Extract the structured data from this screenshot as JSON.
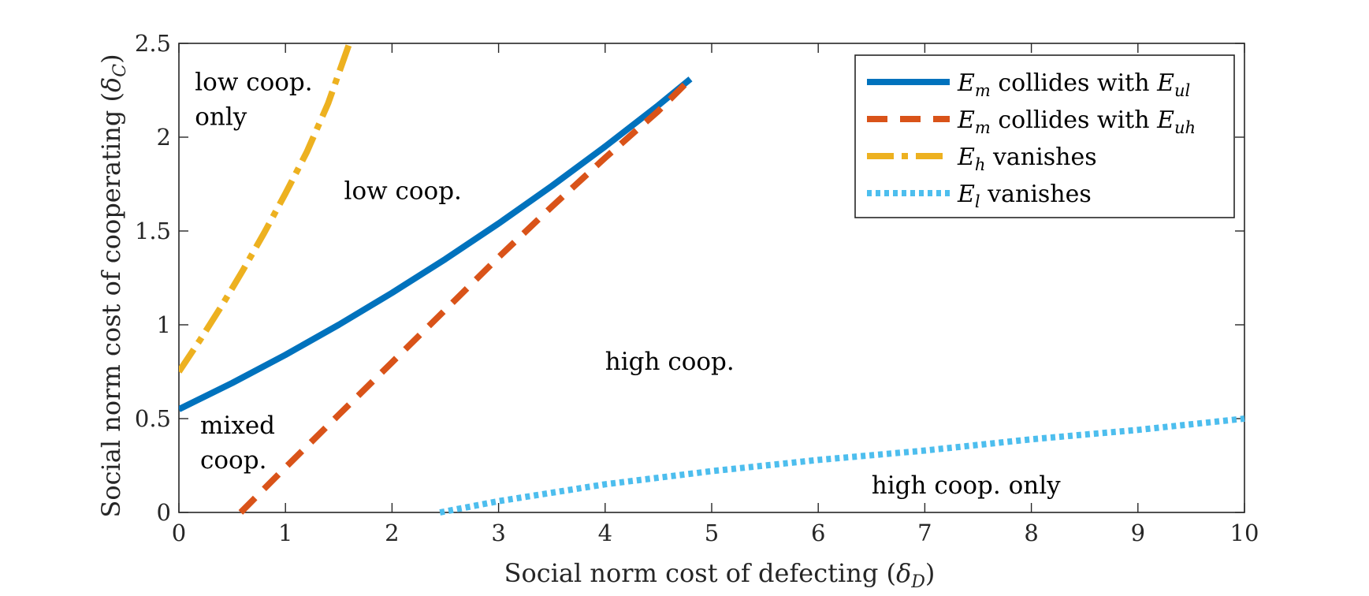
{
  "colors": {
    "axis": "#262626",
    "series_1": "#0072BD",
    "series_2": "#D95319",
    "series_3": "#EDB120",
    "series_4": "#4DBEEE"
  },
  "chart_data": {
    "type": "line",
    "xlabel_text": "Social norm cost of defecting (",
    "xlabel_symbol": "δ",
    "xlabel_sub": "D",
    "xlabel_close": ")",
    "ylabel_text": "Social norm cost of cooperating (",
    "ylabel_symbol": "δ",
    "ylabel_sub": "C",
    "ylabel_close": ")",
    "xlim": [
      0,
      10
    ],
    "ylim": [
      0,
      2.5
    ],
    "xticks": [
      0,
      1,
      2,
      3,
      4,
      5,
      6,
      7,
      8,
      9,
      10
    ],
    "yticks": [
      0,
      0.5,
      1,
      1.5,
      2,
      2.5
    ],
    "xtick_labels": [
      "0",
      "1",
      "2",
      "3",
      "4",
      "5",
      "6",
      "7",
      "8",
      "9",
      "10"
    ],
    "ytick_labels": [
      "0",
      "0.5",
      "1",
      "1.5",
      "2",
      "2.5"
    ],
    "grid": false,
    "legend_position": "top-right",
    "series": [
      {
        "legend_math": "E",
        "legend_sub": "m",
        "legend_text": " collides with ",
        "legend_math2": "E",
        "legend_sub2": "ul",
        "color": "#0072BD",
        "style": "solid",
        "x": [
          0,
          0.5,
          1,
          1.5,
          2,
          2.5,
          3,
          3.5,
          4,
          4.5,
          4.8
        ],
        "y": [
          0.55,
          0.69,
          0.84,
          1.0,
          1.17,
          1.35,
          1.54,
          1.74,
          1.95,
          2.17,
          2.31
        ]
      },
      {
        "legend_math": "E",
        "legend_sub": "m",
        "legend_text": " collides with ",
        "legend_math2": "E",
        "legend_sub2": "uh",
        "color": "#D95319",
        "style": "dashed",
        "x": [
          0.58,
          1,
          1.5,
          2,
          2.5,
          3,
          3.5,
          4,
          4.5,
          4.8
        ],
        "y": [
          0,
          0.24,
          0.52,
          0.8,
          1.08,
          1.36,
          1.63,
          1.89,
          2.14,
          2.31
        ]
      },
      {
        "legend_math": "E",
        "legend_sub": "h",
        "legend_text": " vanishes",
        "color": "#EDB120",
        "style": "dashdot",
        "x": [
          0,
          0.2,
          0.4,
          0.6,
          0.8,
          1.0,
          1.2,
          1.4,
          1.6
        ],
        "y": [
          0.75,
          0.92,
          1.1,
          1.29,
          1.49,
          1.7,
          1.92,
          2.18,
          2.5
        ]
      },
      {
        "legend_math": "E",
        "legend_sub": "l",
        "legend_text": " vanishes",
        "color": "#4DBEEE",
        "style": "dotted",
        "x": [
          2.45,
          3,
          4,
          5,
          6,
          7,
          8,
          9,
          10
        ],
        "y": [
          0,
          0.06,
          0.15,
          0.22,
          0.28,
          0.33,
          0.39,
          0.44,
          0.5
        ]
      }
    ],
    "annotations": [
      {
        "lines": [
          "low coop.",
          "only"
        ],
        "x": 0.15,
        "y": 2.25
      },
      {
        "lines": [
          "low coop."
        ],
        "x": 1.55,
        "y": 1.67
      },
      {
        "lines": [
          "high coop."
        ],
        "x": 4.0,
        "y": 0.76
      },
      {
        "lines": [
          "mixed",
          "coop."
        ],
        "x": 0.2,
        "y": 0.42
      },
      {
        "lines": [
          "high coop. only"
        ],
        "x": 6.5,
        "y": 0.1
      }
    ]
  }
}
